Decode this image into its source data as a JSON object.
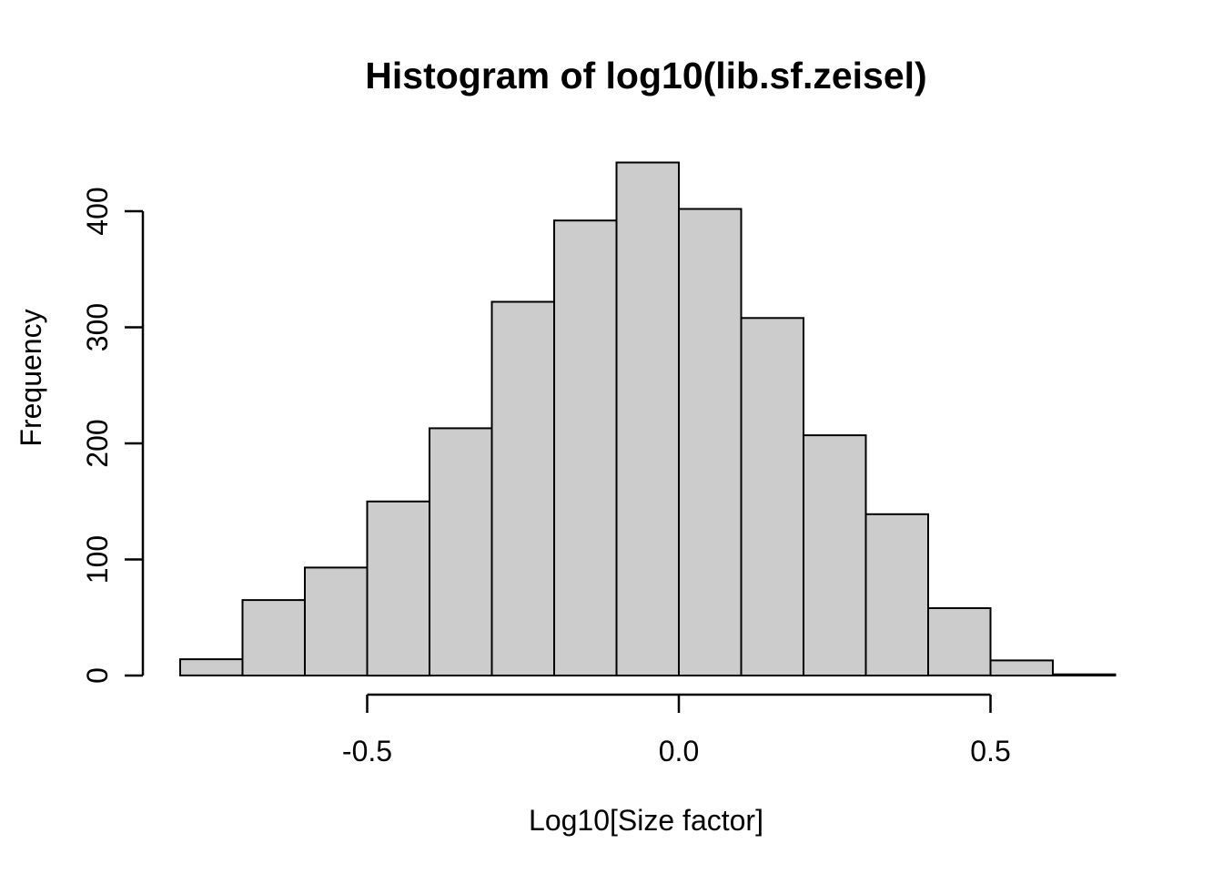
{
  "page": {
    "background": "#ffffff"
  },
  "chart_data": {
    "type": "bar",
    "subtype": "histogram",
    "title": "Histogram of log10(lib.sf.zeisel)",
    "xlabel": "Log10[Size factor]",
    "ylabel": "Frequency",
    "bin_start": -0.8,
    "bin_width": 0.1,
    "counts": [
      14,
      65,
      93,
      150,
      213,
      322,
      392,
      442,
      402,
      308,
      207,
      139,
      58,
      13,
      1
    ],
    "bin_edges": [
      -0.8,
      -0.7,
      -0.6,
      -0.5,
      -0.4,
      -0.3,
      -0.2,
      -0.1,
      0.0,
      0.1,
      0.2,
      0.3,
      0.4,
      0.5,
      0.6,
      0.7
    ],
    "x_ticks": [
      {
        "value": -0.5,
        "label": "-0.5"
      },
      {
        "value": 0.0,
        "label": "0.0"
      },
      {
        "value": 0.5,
        "label": "0.5"
      }
    ],
    "y_ticks": [
      {
        "value": 0,
        "label": "0"
      },
      {
        "value": 100,
        "label": "100"
      },
      {
        "value": 200,
        "label": "200"
      },
      {
        "value": 300,
        "label": "300"
      },
      {
        "value": 400,
        "label": "400"
      }
    ],
    "xlim": [
      -0.8,
      0.7
    ],
    "ylim": [
      0,
      443
    ],
    "grid": false,
    "legend": false,
    "bar_fill": "#cccccc",
    "bar_stroke": "#000000",
    "axis_color": "#000000",
    "text_color": "#000000"
  }
}
